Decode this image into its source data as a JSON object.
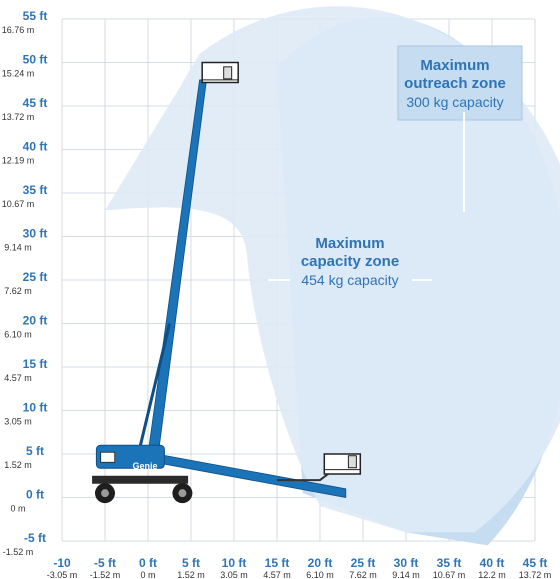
{
  "chart_data": {
    "type": "working-range",
    "y_ticks": [
      {
        "ft": "55 ft",
        "m": "16.76 m"
      },
      {
        "ft": "50 ft",
        "m": "15.24 m"
      },
      {
        "ft": "45 ft",
        "m": "13.72 m"
      },
      {
        "ft": "40 ft",
        "m": "12.19 m"
      },
      {
        "ft": "35 ft",
        "m": "10.67 m"
      },
      {
        "ft": "30 ft",
        "m": "9.14 m"
      },
      {
        "ft": "25 ft",
        "m": "7.62 m"
      },
      {
        "ft": "20 ft",
        "m": "6.10 m"
      },
      {
        "ft": "15 ft",
        "m": "4.57 m"
      },
      {
        "ft": "10 ft",
        "m": "3.05 m"
      },
      {
        "ft": "5 ft",
        "m": "1.52 m"
      },
      {
        "ft": "0 ft",
        "m": "0 m"
      },
      {
        "ft": "-5 ft",
        "m": "-1.52 m"
      }
    ],
    "x_ticks": [
      {
        "ft": "-10",
        "m": "-3.05 m"
      },
      {
        "ft": "-5 ft",
        "m": "-1.52 m"
      },
      {
        "ft": "0 ft",
        "m": "0 m"
      },
      {
        "ft": "5 ft",
        "m": "1.52 m"
      },
      {
        "ft": "10 ft",
        "m": "3.05 m"
      },
      {
        "ft": "15 ft",
        "m": "4.57 m"
      },
      {
        "ft": "20 ft",
        "m": "6.10 m"
      },
      {
        "ft": "25 ft",
        "m": "7.62 m"
      },
      {
        "ft": "30 ft",
        "m": "9.14 m"
      },
      {
        "ft": "35 ft",
        "m": "10.67 m"
      },
      {
        "ft": "40 ft",
        "m": "12.2 m"
      },
      {
        "ft": "45 ft",
        "m": "13.72 m"
      }
    ],
    "xlim_ft": [
      -10,
      45
    ],
    "ylim_ft": [
      -5,
      55
    ],
    "grid": true,
    "zones": {
      "outreach": {
        "title_1": "Maximum",
        "title_2": "outreach zone",
        "capacity": "300 kg capacity",
        "color": "#c6dcf0"
      },
      "capacity": {
        "title_1": "Maximum",
        "title_2": "capacity zone",
        "capacity": "454 kg capacity",
        "color": "#deeaf6"
      }
    },
    "machine": {
      "brand": "Genie",
      "color": "#1b73b8"
    }
  }
}
